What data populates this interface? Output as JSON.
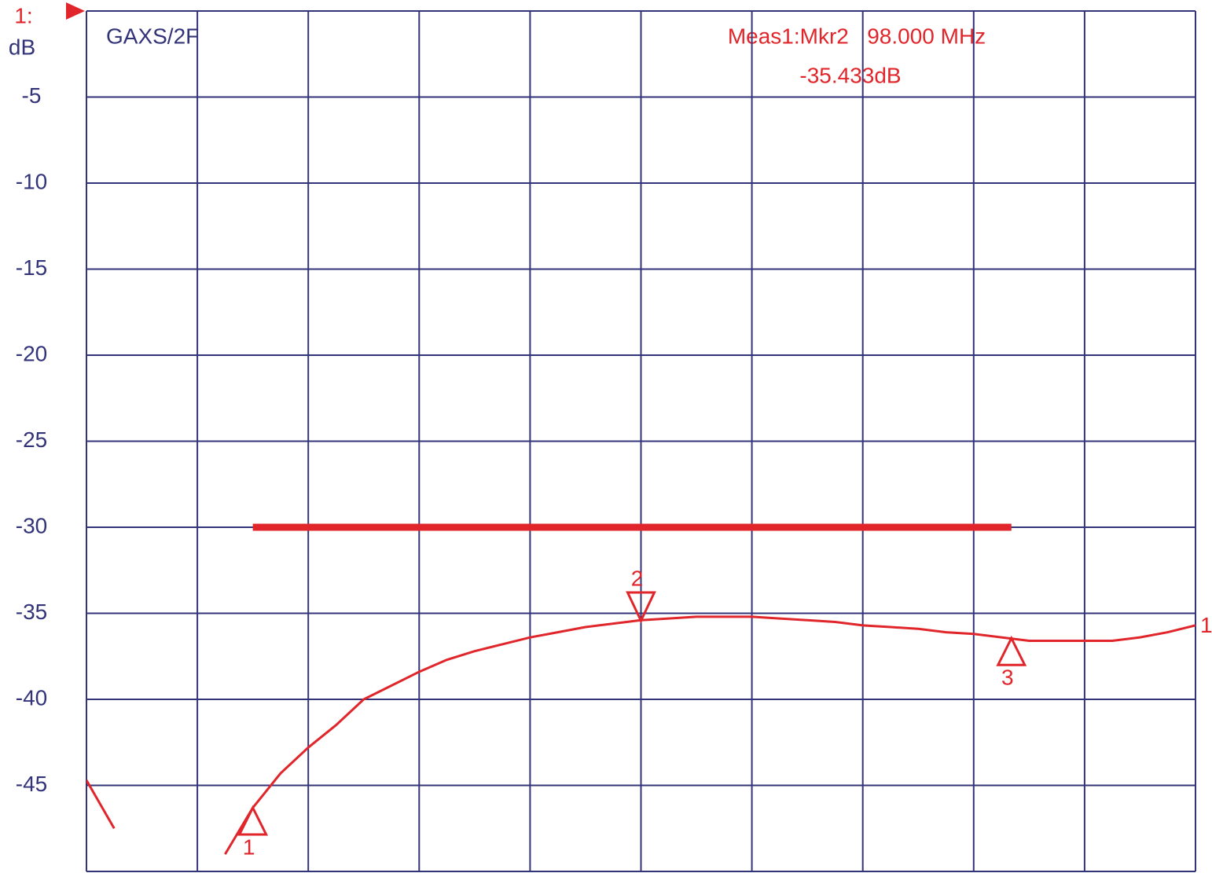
{
  "chart_data": {
    "type": "line",
    "title": "GAXS/2F",
    "channel_label": "1:",
    "y_unit": "dB",
    "annotations": [
      "Meas1:Mkr2   98.000 MHz",
      "-35.433dB"
    ],
    "x": [
      0,
      0.25,
      0.5,
      0.75,
      1,
      1.25,
      1.5,
      1.75,
      2,
      2.25,
      2.5,
      2.75,
      3,
      3.25,
      3.5,
      3.75,
      4,
      4.25,
      4.5,
      4.75,
      5,
      5.25,
      5.5,
      5.75,
      6,
      6.25,
      6.5,
      6.75,
      7,
      7.25,
      7.5,
      7.75,
      8,
      8.25,
      8.5,
      8.75,
      9,
      9.25,
      9.5,
      9.75,
      10
    ],
    "series": [
      {
        "name": "1",
        "color": "#e0262b",
        "values": [
          -44.7,
          -47.5,
          null,
          null,
          null,
          -49,
          -46.3,
          -44.3,
          -42.8,
          -41.5,
          -40.0,
          -39.2,
          -38.4,
          -37.7,
          -37.2,
          -36.8,
          -36.4,
          -36.1,
          -35.8,
          -35.6,
          -35.4,
          -35.3,
          -35.2,
          -35.2,
          -35.2,
          -35.3,
          -35.4,
          -35.5,
          -35.7,
          -35.8,
          -35.9,
          -36.1,
          -36.2,
          -36.4,
          -36.6,
          -36.6,
          -36.6,
          -36.6,
          -36.4,
          -36.1,
          -35.7
        ]
      }
    ],
    "markers": [
      {
        "label": "1",
        "x": 1.5,
        "value": -46.3
      },
      {
        "label": "2",
        "x": 5,
        "value": -35.433
      },
      {
        "label": "3",
        "x": 8.34,
        "value": -36.45
      }
    ],
    "limit_line": {
      "value": -30,
      "x": [
        1.5,
        8.34
      ],
      "color": "#e0262b"
    },
    "xlim": [
      0,
      10
    ],
    "xticks": [
      0,
      1,
      2,
      3,
      4,
      5,
      6,
      7,
      8,
      9,
      10
    ],
    "ylim": [
      -50,
      0
    ],
    "yticks": [
      0,
      -5,
      -10,
      -15,
      -20,
      -25,
      -30,
      -35,
      -40,
      -45,
      -50
    ],
    "ytick_labels_shown": [
      -5,
      -10,
      -15,
      -20,
      -25,
      -30,
      -35,
      -40,
      -45
    ],
    "grid": true
  }
}
